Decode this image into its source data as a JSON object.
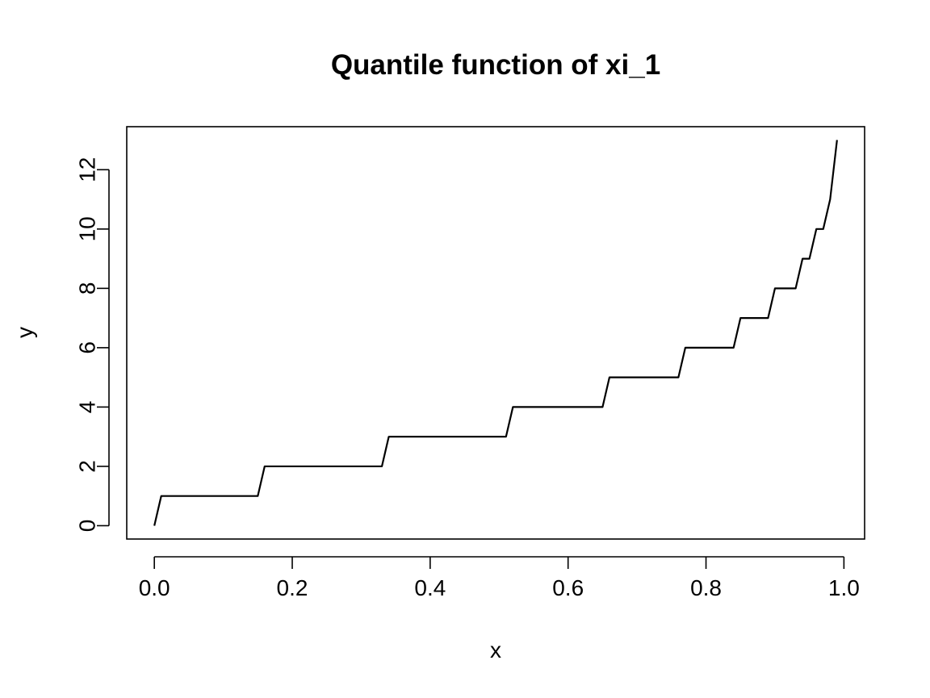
{
  "chart_data": {
    "type": "line",
    "title": "Quantile function of xi_1",
    "xlabel": "x",
    "ylabel": "y",
    "xlim": [
      -0.04,
      1.03
    ],
    "ylim": [
      -0.45,
      13.45
    ],
    "x_ticks": [
      0.0,
      0.2,
      0.4,
      0.6,
      0.8,
      1.0
    ],
    "x_tick_labels": [
      "0.0",
      "0.2",
      "0.4",
      "0.6",
      "0.8",
      "1.0"
    ],
    "y_ticks": [
      0,
      2,
      4,
      6,
      8,
      10,
      12
    ],
    "y_tick_labels": [
      "0",
      "2",
      "4",
      "6",
      "8",
      "10",
      "12"
    ],
    "grid": false,
    "legend": "none",
    "colors": {
      "line": "#000000",
      "axes": "#000000",
      "background": "#ffffff"
    },
    "series": [
      {
        "x": [
          0.0,
          0.01,
          0.15,
          0.16,
          0.33,
          0.34,
          0.51,
          0.52,
          0.65,
          0.66,
          0.76,
          0.77,
          0.84,
          0.85,
          0.89,
          0.9,
          0.93,
          0.94,
          0.95,
          0.96,
          0.97,
          0.98,
          0.99
        ],
        "y": [
          0,
          1,
          1,
          2,
          2,
          3,
          3,
          4,
          4,
          5,
          5,
          6,
          6,
          7,
          7,
          8,
          8,
          9,
          9,
          10,
          10,
          11,
          13
        ]
      }
    ]
  }
}
